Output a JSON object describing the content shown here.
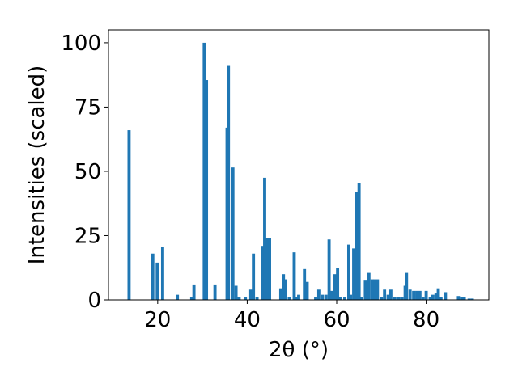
{
  "chart_data": {
    "type": "bar",
    "xlabel": "2θ (°)",
    "ylabel": "Intensities (scaled)",
    "xlim": [
      9,
      94
    ],
    "ylim": [
      0,
      105
    ],
    "xticks": [
      20,
      40,
      60,
      80
    ],
    "yticks": [
      0,
      25,
      50,
      75,
      100
    ],
    "grid": false,
    "bar_color": "#1f77b4",
    "bar_width": 0.7,
    "series": [
      {
        "x": [
          13.6,
          18.9,
          19.9,
          21.1,
          24.4,
          27.6,
          28.1,
          30.4,
          30.9,
          32.8,
          35.5,
          35.8,
          36.8,
          37.5,
          38.2,
          39.6,
          40.8,
          41.4,
          42.2,
          43.4,
          43.9,
          44.4,
          45.0,
          47.5,
          48.1,
          48.5,
          49.4,
          50.5,
          51.0,
          51.5,
          52.8,
          53.4,
          55.3,
          56.0,
          56.8,
          57.6,
          58.3,
          58.8,
          59.6,
          60.2,
          60.8,
          61.8,
          62.7,
          63.1,
          63.8,
          64.4,
          65.0,
          65.6,
          66.4,
          67.2,
          67.9,
          68.5,
          69.1,
          70.0,
          70.7,
          71.5,
          72.1,
          73.0,
          73.9,
          74.6,
          75.3,
          75.6,
          76.4,
          77.2,
          77.9,
          78.6,
          79.3,
          80.0,
          80.9,
          81.5,
          82.2,
          82.7,
          83.3,
          84.3,
          87.2,
          87.9,
          88.5,
          89.6,
          90.3
        ],
        "values": [
          66,
          18,
          14.5,
          20.5,
          2,
          1,
          6,
          100,
          85.5,
          6,
          67,
          91,
          51.5,
          5.5,
          1,
          1,
          4,
          18,
          1,
          21,
          47.5,
          24,
          24,
          4.5,
          10,
          8,
          1,
          18.5,
          1,
          2,
          12,
          7,
          1,
          4,
          2,
          2,
          23.5,
          3.5,
          10,
          12.5,
          1,
          1,
          21.5,
          2,
          20,
          42,
          45.5,
          1,
          7.5,
          10.5,
          8,
          8,
          8,
          1,
          4,
          2,
          4,
          1,
          1,
          1,
          5.5,
          10.5,
          4,
          3.5,
          3.5,
          3.5,
          1,
          3.5,
          1,
          2,
          2.5,
          4.5,
          1,
          3,
          1.5,
          1,
          1,
          0.5,
          0.5
        ]
      }
    ]
  }
}
